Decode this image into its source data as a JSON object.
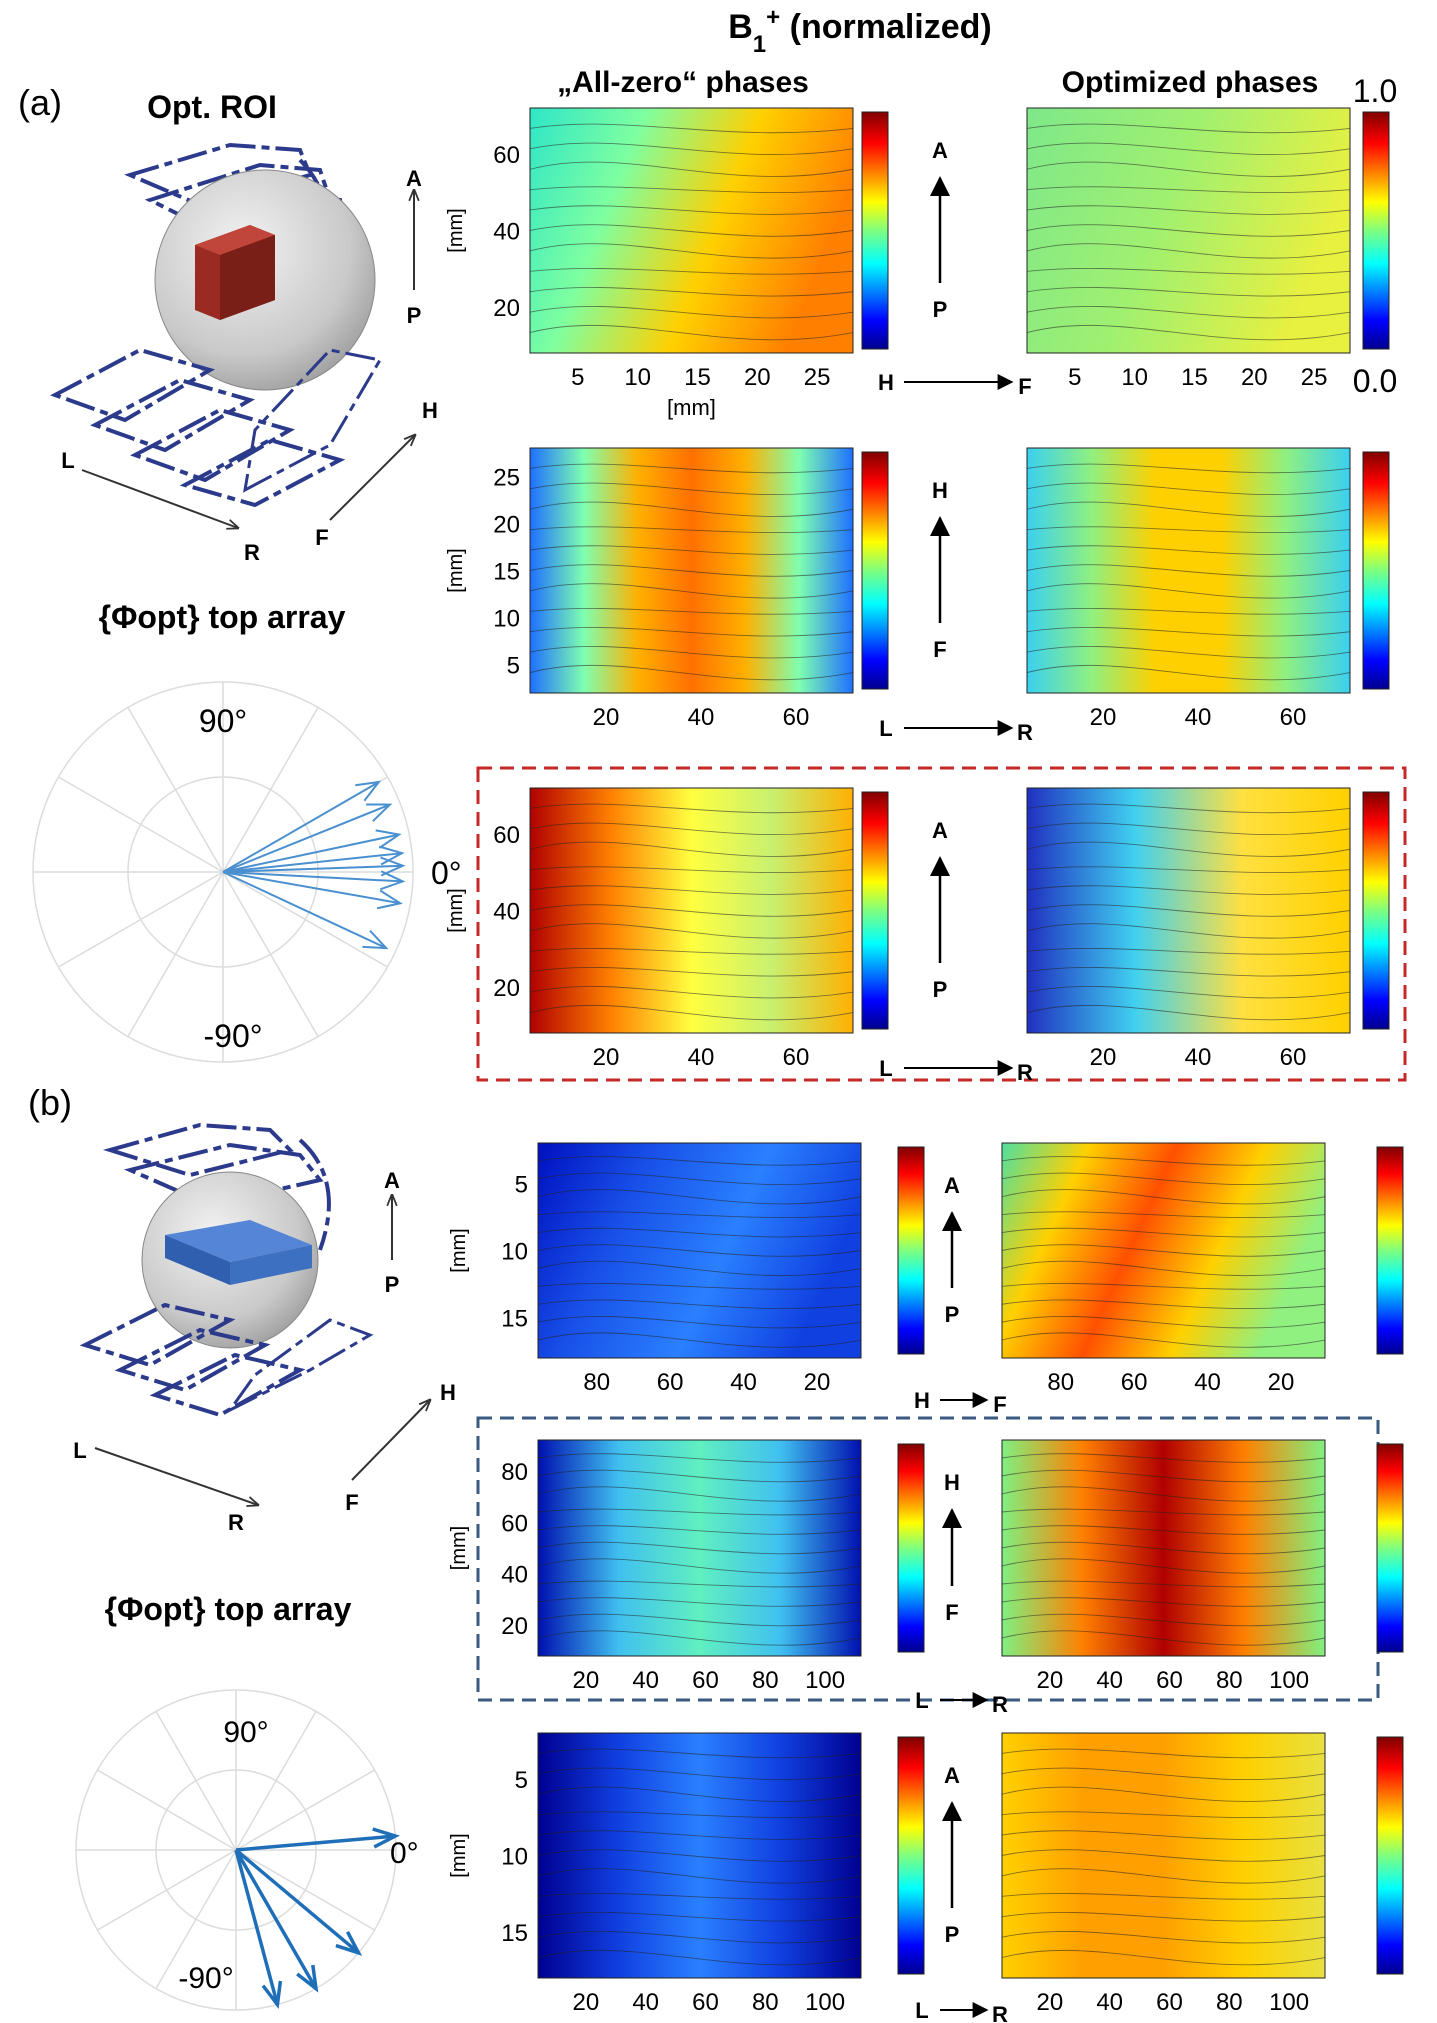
{
  "figure": {
    "main_title_html": "B<tspan baseline-shift='sub' font-size='24'>1</tspan><tspan baseline-shift='super' font-size='24'>+</tspan> (normalized)",
    "col_headers": [
      "„All-zero“ phases",
      "Optimized phases"
    ],
    "colorbar_max": "1.0",
    "colorbar_min": "0.0"
  },
  "panel_a": {
    "label": "(a)",
    "roi_title": "Opt. ROI",
    "phase_title": "{Φopt} top array",
    "diagram_labels": {
      "A": "A",
      "P": "P",
      "H": "H",
      "F": "F",
      "L": "L",
      "R": "R"
    },
    "polar": {
      "label_90": "90°",
      "label_0": "0°",
      "label_m90": "-90°",
      "phase_angles_deg": [
        30,
        22,
        12,
        6,
        2,
        -3,
        -10,
        -25
      ]
    },
    "rows": [
      {
        "axis_y_unit": "[mm]",
        "axis_x_unit": "[mm]",
        "yticks": [
          "60",
          "40",
          "20"
        ],
        "xticks": [
          "5",
          "10",
          "15",
          "20",
          "25"
        ],
        "mid_top": "A",
        "mid_bottom": "P",
        "dir_from": "H",
        "dir_to": "F"
      },
      {
        "axis_y_unit": "[mm]",
        "yticks": [
          "25",
          "20",
          "15",
          "10",
          "5"
        ],
        "xticks": [
          "20",
          "40",
          "60"
        ],
        "mid_top": "H",
        "mid_bottom": "F",
        "dir_from": "L",
        "dir_to": "R"
      },
      {
        "axis_y_unit": "[mm]",
        "yticks": [
          "60",
          "40",
          "20"
        ],
        "xticks": [
          "20",
          "40",
          "60"
        ],
        "mid_top": "A",
        "mid_bottom": "P",
        "dir_from": "L",
        "dir_to": "R"
      }
    ]
  },
  "panel_b": {
    "label": "(b)",
    "phase_title": "{Φopt} top array",
    "diagram_labels": {
      "A": "A",
      "P": "P",
      "H": "H",
      "F": "F",
      "L": "L",
      "R": "R"
    },
    "polar": {
      "label_90": "90°",
      "label_0": "0°",
      "label_m90": "-90°",
      "phase_angles_deg": [
        5,
        -40,
        -60,
        -75
      ]
    },
    "rows": [
      {
        "axis_y_unit": "[mm]",
        "yticks": [
          "5",
          "10",
          "15"
        ],
        "xticks": [
          "80",
          "60",
          "40",
          "20"
        ],
        "mid_top": "A",
        "mid_bottom": "P",
        "dir_from": "H",
        "dir_to": "F"
      },
      {
        "axis_y_unit": "[mm]",
        "yticks": [
          "80",
          "60",
          "40",
          "20"
        ],
        "xticks": [
          "20",
          "40",
          "60",
          "80",
          "100"
        ],
        "mid_top": "H",
        "mid_bottom": "F",
        "dir_from": "L",
        "dir_to": "R"
      },
      {
        "axis_y_unit": "[mm]",
        "yticks": [
          "5",
          "10",
          "15"
        ],
        "xticks": [
          "20",
          "40",
          "60",
          "80",
          "100"
        ],
        "mid_top": "A",
        "mid_bottom": "P",
        "dir_from": "L",
        "dir_to": "R"
      }
    ]
  },
  "colors": {
    "red_box": "#c62828",
    "blue_box": "#3a5a80",
    "coil": "#2c3a8c",
    "arrow_blue": "#4a90d0"
  }
}
